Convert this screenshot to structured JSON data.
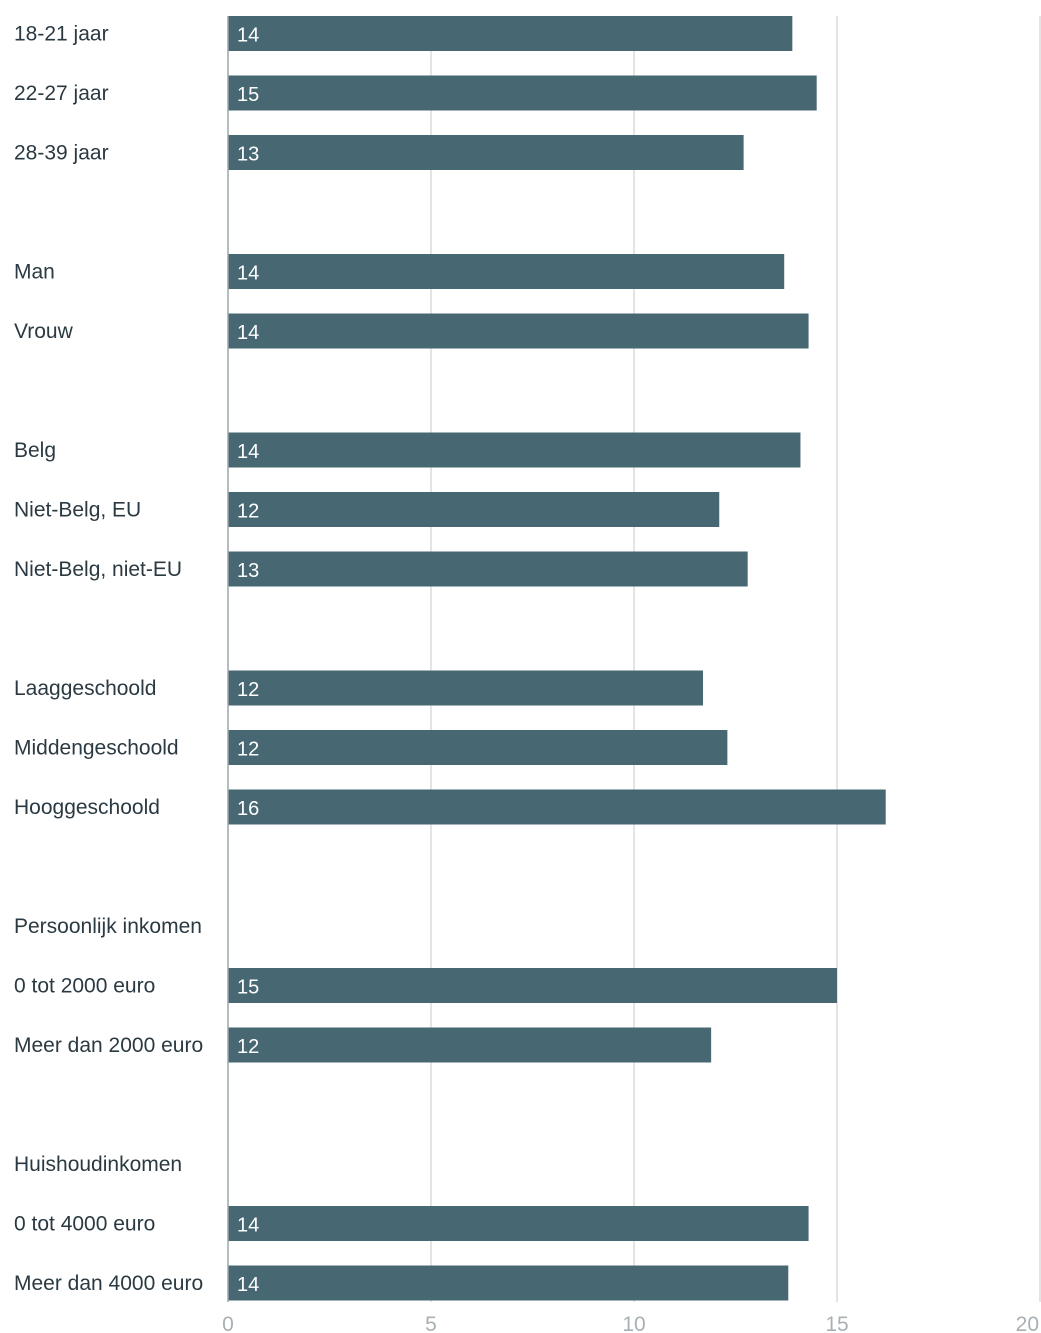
{
  "chart_data": {
    "type": "bar",
    "orientation": "horizontal",
    "title": "",
    "xlabel": "",
    "ylabel": "",
    "xlim": [
      0,
      20
    ],
    "x_ticks": [
      "0",
      "5",
      "10",
      "15",
      "20"
    ],
    "grid": true,
    "bar_color": "#476873",
    "categories": [
      "18-21 jaar",
      "22-27 jaar",
      "28-39 jaar",
      "",
      "Man",
      "Vrouw",
      "",
      "Belg",
      "Niet-Belg, EU",
      "Niet-Belg, niet-EU",
      "",
      "Laaggeschoold",
      "Middengeschoold",
      "Hooggeschoold",
      "",
      "Persoonlijk inkomen",
      "0 tot 2000 euro",
      "Meer dan 2000 euro",
      "",
      "Huishoudinkomen",
      "0 tot 4000 euro",
      "Meer dan 4000 euro"
    ],
    "values": [
      13.9,
      14.5,
      12.7,
      null,
      13.7,
      14.3,
      null,
      14.1,
      12.1,
      12.8,
      null,
      11.7,
      12.3,
      16.2,
      null,
      null,
      15.0,
      11.9,
      null,
      null,
      14.3,
      13.8
    ],
    "data_labels": [
      "14",
      "15",
      "13",
      "",
      "14",
      "14",
      "",
      "14",
      "12",
      "13",
      "",
      "12",
      "12",
      "16",
      "",
      "",
      "15",
      "12",
      "",
      "",
      "14",
      "14"
    ]
  }
}
